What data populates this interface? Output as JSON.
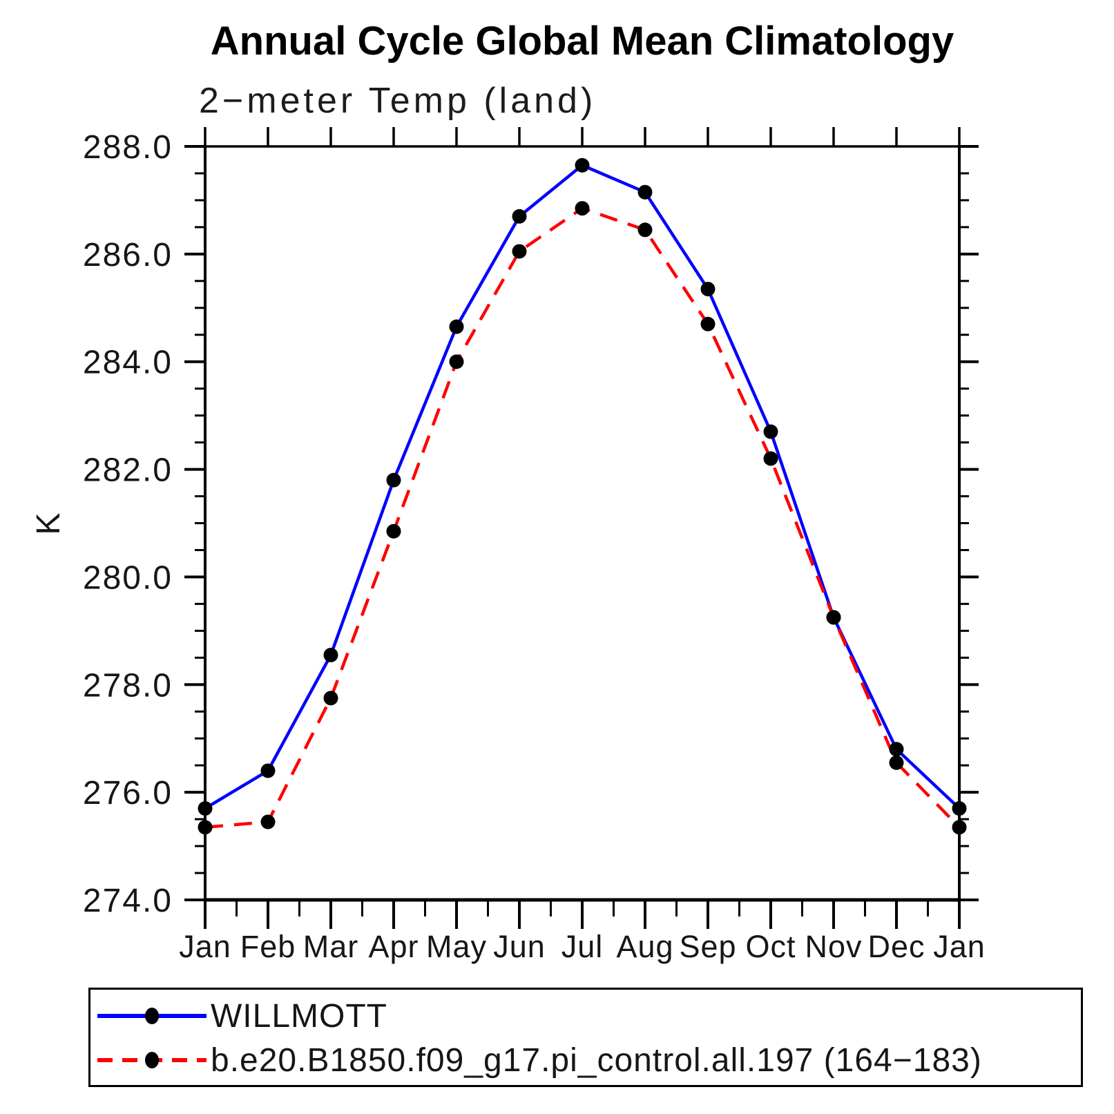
{
  "header": {
    "title": "Annual Cycle Global Mean Climatology",
    "subtitle": "2−meter Temp (land)"
  },
  "chart_data": {
    "type": "line",
    "title": "Annual Cycle Global Mean Climatology",
    "subtitle": "2−meter Temp (land)",
    "ylabel": "K",
    "categories": [
      "Jan",
      "Feb",
      "Mar",
      "Apr",
      "May",
      "Jun",
      "Jul",
      "Aug",
      "Sep",
      "Oct",
      "Nov",
      "Dec",
      "Jan"
    ],
    "ylim": [
      274.0,
      288.0
    ],
    "ytick_major": 2.0,
    "ytick_minor": 0.5,
    "ytick_labels": [
      "274.0",
      "276.0",
      "278.0",
      "280.0",
      "282.0",
      "284.0",
      "286.0",
      "288.0"
    ],
    "grid": false,
    "legend_position": "bottom",
    "axis_color": "#000000",
    "marker_color": "#000000",
    "series": [
      {
        "name": "WILLMOTT",
        "color": "#0000ff",
        "style": "solid",
        "marker": "circle",
        "values": [
          275.7,
          276.4,
          278.55,
          281.8,
          284.65,
          286.7,
          287.65,
          287.15,
          285.35,
          282.7,
          279.25,
          276.8,
          275.7
        ]
      },
      {
        "name": "b.e20.B1850.f09_g17.pi_control.all.197 (164−183)",
        "color": "#ff0000",
        "style": "dashed",
        "marker": "circle",
        "values": [
          275.35,
          275.45,
          277.75,
          280.85,
          284.0,
          286.05,
          286.85,
          286.45,
          284.7,
          282.2,
          279.25,
          276.55,
          275.35
        ]
      }
    ]
  }
}
